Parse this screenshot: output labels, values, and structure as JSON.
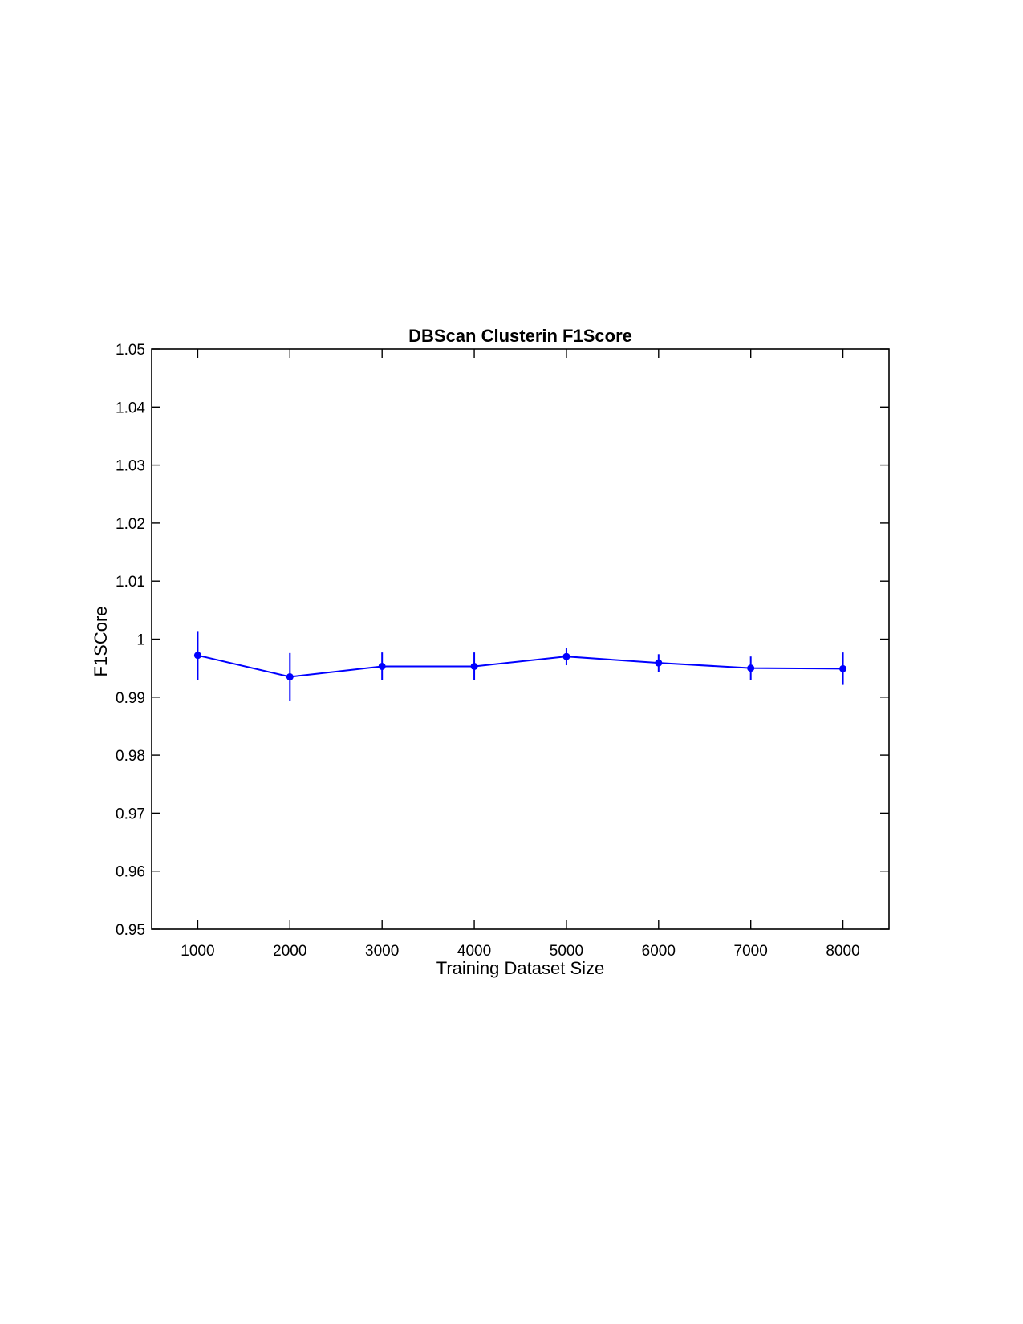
{
  "chart_data": {
    "type": "line",
    "title": "DBScan Clusterin F1Score",
    "xlabel": "Training Dataset Size",
    "ylabel": "F1SCore",
    "xlim": [
      500,
      8500
    ],
    "ylim": [
      0.95,
      1.05
    ],
    "x_ticks": [
      "1000",
      "2000",
      "3000",
      "4000",
      "5000",
      "6000",
      "7000",
      "8000"
    ],
    "y_ticks": [
      "0.95",
      "0.96",
      "0.97",
      "0.98",
      "0.99",
      "1",
      "1.01",
      "1.02",
      "1.03",
      "1.04",
      "1.05"
    ],
    "grid": false,
    "series": [
      {
        "color": "#0000ff",
        "x": [
          1000,
          2000,
          3000,
          4000,
          5000,
          6000,
          7000,
          8000
        ],
        "y": [
          0.9972,
          0.9935,
          0.9953,
          0.9953,
          0.997,
          0.9959,
          0.995,
          0.9949
        ],
        "err_lower": [
          0.0042,
          0.0041,
          0.0024,
          0.0024,
          0.0015,
          0.0015,
          0.002,
          0.0028
        ],
        "err_upper": [
          0.0042,
          0.0041,
          0.0024,
          0.0024,
          0.0015,
          0.0015,
          0.002,
          0.0028
        ]
      }
    ]
  }
}
